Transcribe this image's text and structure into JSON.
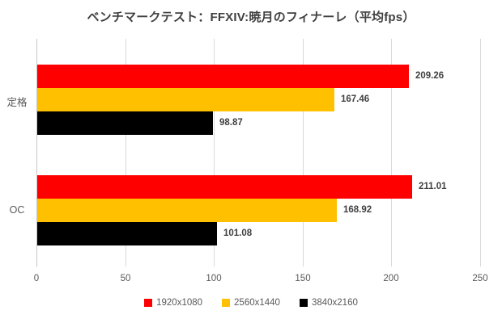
{
  "title": "ベンチマークテスト：FFXIV:暁月のフィナーレ（平均fps）",
  "chart_data": {
    "type": "bar",
    "orientation": "horizontal",
    "title": "ベンチマークテスト：FFXIV:暁月のフィナーレ（平均fps）",
    "xlabel": "",
    "ylabel": "",
    "categories": [
      "定格",
      "OC"
    ],
    "series": [
      {
        "name": "1920x1080",
        "color": "#ff0000",
        "values": [
          209.26,
          211.01
        ]
      },
      {
        "name": "2560x1440",
        "color": "#ffc000",
        "values": [
          167.46,
          168.92
        ]
      },
      {
        "name": "3840x2160",
        "color": "#000000",
        "values": [
          98.87,
          101.08
        ]
      }
    ],
    "xlim": [
      0,
      250
    ],
    "xticks": [
      0,
      50,
      100,
      150,
      200,
      250
    ],
    "grid": true,
    "value_labels": true,
    "value_label_decimals": 2,
    "legend_position": "bottom"
  },
  "colors": {
    "background": "#ffffff",
    "gridline": "#d9d9d9",
    "axis_line": "#c6c6c6",
    "title_text": "#404040",
    "value_text": "#404040",
    "tick_text": "#595959",
    "category_text": "#595959",
    "legend_text": "#595959"
  }
}
